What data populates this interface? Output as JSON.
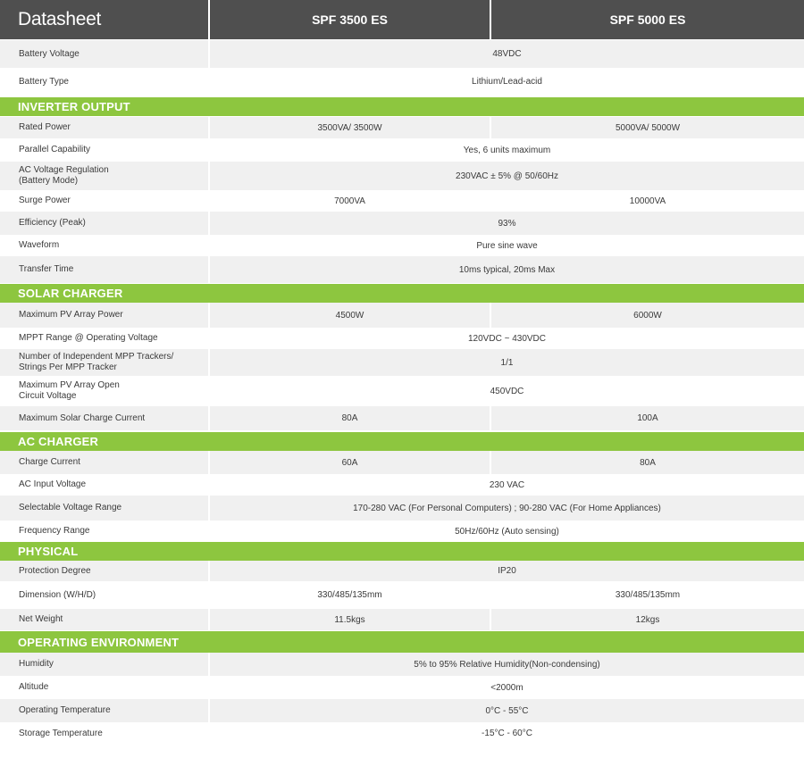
{
  "header": {
    "title": "Datasheet",
    "model_a": "SPF 3500 ES",
    "model_b": "SPF 5000 ES"
  },
  "colors": {
    "header_bg": "#4f4f4f",
    "section_bg": "#8dc63f"
  },
  "rows_general": [
    {
      "label": "Battery Voltage",
      "span": "48VDC"
    },
    {
      "label": "Battery Type",
      "span": "Lithium/Lead-acid"
    }
  ],
  "sections": [
    {
      "title": "INVERTER OUTPUT",
      "rows": [
        {
          "label": "Rated Power",
          "a": "3500VA/ 3500W",
          "b": "5000VA/ 5000W"
        },
        {
          "label": "Parallel Capability",
          "span": "Yes, 6 units maximum"
        },
        {
          "label": "AC Voltage Regulation\n(Battery Mode)",
          "span": "230VAC ± 5% @ 50/60Hz"
        },
        {
          "label": "Surge Power",
          "a": "7000VA",
          "b": "10000VA"
        },
        {
          "label": "Efficiency (Peak)",
          "span": "93%"
        },
        {
          "label": "Waveform",
          "span": "Pure sine wave"
        },
        {
          "label": "Transfer Time",
          "span": "10ms typical, 20ms Max"
        }
      ]
    },
    {
      "title": "SOLAR CHARGER",
      "rows": [
        {
          "label": "Maximum PV Array Power",
          "a": "4500W",
          "b": "6000W"
        },
        {
          "label": "MPPT Range @ Operating Voltage",
          "span": "120VDC ~ 430VDC"
        },
        {
          "label": "Number of Independent MPP Trackers/\nStrings Per MPP Tracker",
          "span": "1/1"
        },
        {
          "label": "Maximum PV Array Open\nCircuit Voltage",
          "span": "450VDC"
        },
        {
          "label": "Maximum Solar Charge Current",
          "a": "80A",
          "b": "100A"
        }
      ]
    },
    {
      "title": "AC CHARGER",
      "rows": [
        {
          "label": "Charge Current",
          "a": "60A",
          "b": "80A"
        },
        {
          "label": "AC Input Voltage",
          "span": "230 VAC"
        },
        {
          "label": "Selectable Voltage Range",
          "span": "170-280 VAC (For Personal Computers) ; 90-280 VAC (For Home Appliances)"
        },
        {
          "label": "Frequency Range",
          "span": "50Hz/60Hz (Auto sensing)"
        }
      ]
    },
    {
      "title": "PHYSICAL",
      "rows": [
        {
          "label": "Protection Degree",
          "span": "IP20"
        },
        {
          "label": "Dimension (W/H/D)",
          "a": "330/485/135mm",
          "b": "330/485/135mm"
        },
        {
          "label": "Net Weight",
          "a": "11.5kgs",
          "b": "12kgs"
        }
      ]
    },
    {
      "title": "OPERATING ENVIRONMENT",
      "rows": [
        {
          "label": "Humidity",
          "span": "5% to 95% Relative Humidity(Non-condensing)"
        },
        {
          "label": "Altitude",
          "span": "<2000m"
        },
        {
          "label": "Operating Temperature",
          "span": "0°C - 55°C"
        },
        {
          "label": "Storage Temperature",
          "span": "-15°C - 60°C"
        }
      ]
    }
  ]
}
